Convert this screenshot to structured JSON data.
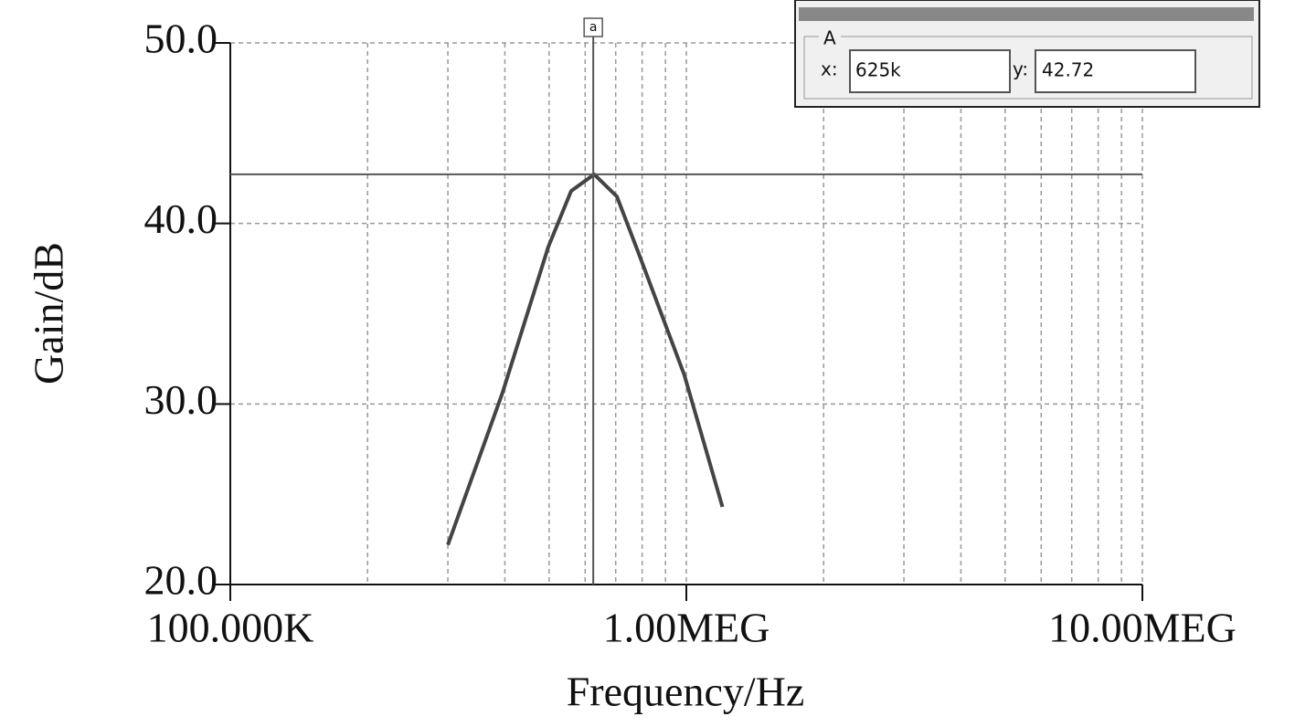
{
  "chart_data": {
    "type": "line",
    "x_label": "Frequency/Hz",
    "y_label": "Gain/dB",
    "log_x": true,
    "grid": true,
    "x": [
      300000,
      395000,
      498000,
      559000,
      628000,
      704000,
      790000,
      990000,
      1200000
    ],
    "series": [
      {
        "color": "#444444",
        "values": [
          22.2,
          30.6,
          38.7,
          41.8,
          42.72,
          41.5,
          38.2,
          31.6,
          24.3
        ]
      }
    ],
    "xlim": [
      100000,
      10000000
    ],
    "xticks": [
      {
        "value": 100000,
        "label": "100.000K"
      },
      {
        "value": 1000000,
        "label": "1.00MEG"
      },
      {
        "value": 10000000,
        "label": "10.00MEG"
      }
    ],
    "xminorticks": [
      200000,
      300000,
      400000,
      500000,
      600000,
      700000,
      800000,
      900000,
      2000000,
      3000000,
      4000000,
      5000000,
      6000000,
      7000000,
      8000000,
      9000000
    ],
    "ylim": [
      20,
      50
    ],
    "yticks": [
      {
        "value": 20,
        "label": "20.0"
      },
      {
        "value": 30,
        "label": "30.0"
      },
      {
        "value": 40,
        "label": "40.0"
      },
      {
        "value": 50,
        "label": "50.0"
      }
    ],
    "cursor": {
      "name": "A",
      "marker": "a",
      "x_label": "x:",
      "x": 625000,
      "x_value_label": "625k",
      "y_label": "y:",
      "y": 42.72
    }
  }
}
